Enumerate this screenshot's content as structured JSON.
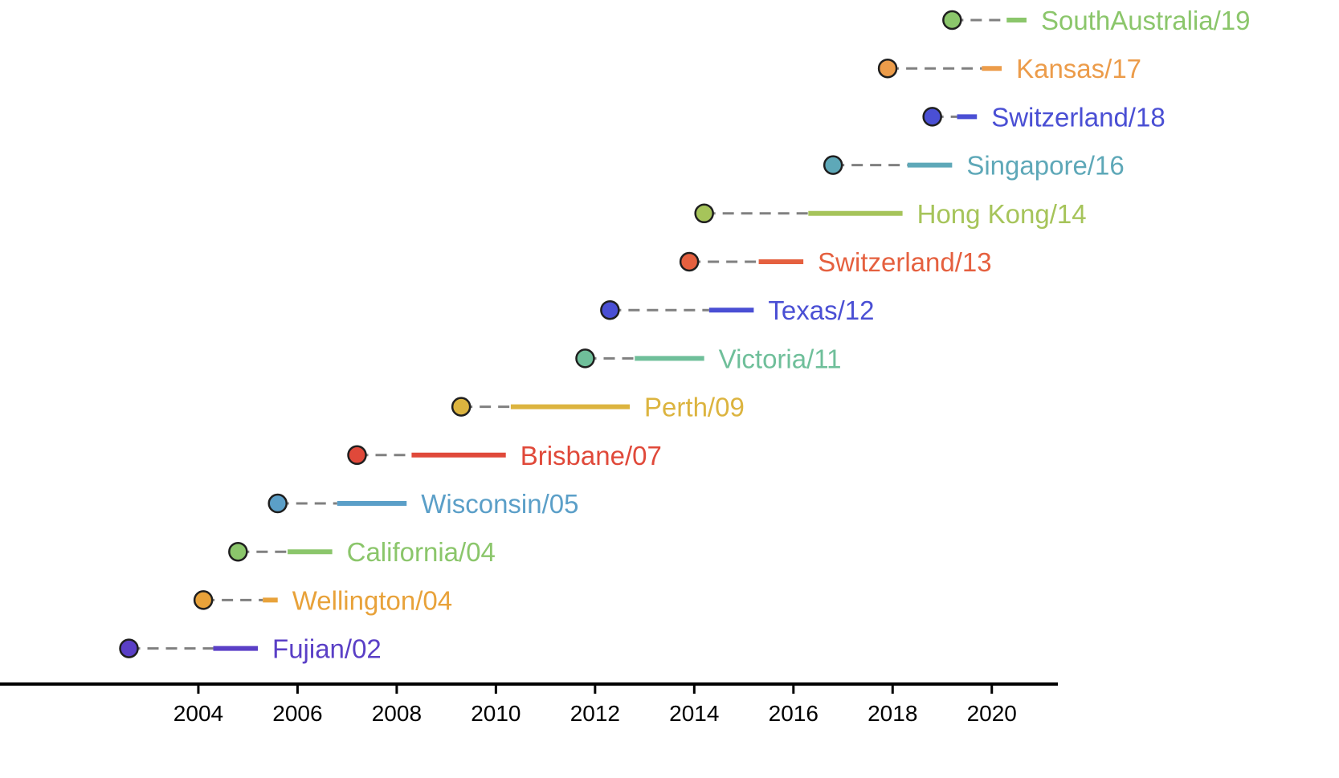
{
  "chart_data": {
    "type": "timeline",
    "xlim": [
      2000.0,
      2021.3
    ],
    "x_ticks": [
      2004,
      2006,
      2008,
      2010,
      2012,
      2014,
      2016,
      2018,
      2020
    ],
    "x_tick_labels": [
      "2004",
      "2006",
      "2008",
      "2010",
      "2012",
      "2014",
      "2016",
      "2018",
      "2020"
    ],
    "grid": false,
    "series": [
      {
        "label": "Fujian/02",
        "color": "#5a3fc6",
        "emergence": 2002.6,
        "bar_start": 2004.3,
        "bar_end": 2005.2
      },
      {
        "label": "Wellington/04",
        "color": "#e8a23a",
        "emergence": 2004.1,
        "bar_start": 2005.3,
        "bar_end": 2005.6
      },
      {
        "label": "California/04",
        "color": "#8bc66b",
        "emergence": 2004.8,
        "bar_start": 2005.8,
        "bar_end": 2006.7
      },
      {
        "label": "Wisconsin/05",
        "color": "#5b9fc8",
        "emergence": 2005.6,
        "bar_start": 2006.8,
        "bar_end": 2008.2
      },
      {
        "label": "Brisbane/07",
        "color": "#e0493a",
        "emergence": 2007.2,
        "bar_start": 2008.3,
        "bar_end": 2010.2
      },
      {
        "label": "Perth/09",
        "color": "#dcb43f",
        "emergence": 2009.3,
        "bar_start": 2010.3,
        "bar_end": 2012.7
      },
      {
        "label": "Victoria/11",
        "color": "#6fbf9a",
        "emergence": 2011.8,
        "bar_start": 2012.8,
        "bar_end": 2014.2
      },
      {
        "label": "Texas/12",
        "color": "#4a4fd4",
        "emergence": 2012.3,
        "bar_start": 2014.3,
        "bar_end": 2015.2
      },
      {
        "label": "Switzerland/13",
        "color": "#e5603f",
        "emergence": 2013.9,
        "bar_start": 2015.3,
        "bar_end": 2016.2
      },
      {
        "label": "Hong Kong/14",
        "color": "#a6c45a",
        "emergence": 2014.2,
        "bar_start": 2016.3,
        "bar_end": 2018.2
      },
      {
        "label": "Singapore/16",
        "color": "#5ea8b8",
        "emergence": 2016.8,
        "bar_start": 2018.3,
        "bar_end": 2019.2
      },
      {
        "label": "Switzerland/18",
        "color": "#4a4fd4",
        "emergence": 2018.8,
        "bar_start": 2019.3,
        "bar_end": 2019.7
      },
      {
        "label": "Kansas/17",
        "color": "#ec9c4a",
        "emergence": 2017.9,
        "bar_start": 2019.8,
        "bar_end": 2020.2
      },
      {
        "label": "SouthAustralia/19",
        "color": "#8bc66b",
        "emergence": 2019.2,
        "bar_start": 2020.3,
        "bar_end": 2020.7
      }
    ]
  }
}
